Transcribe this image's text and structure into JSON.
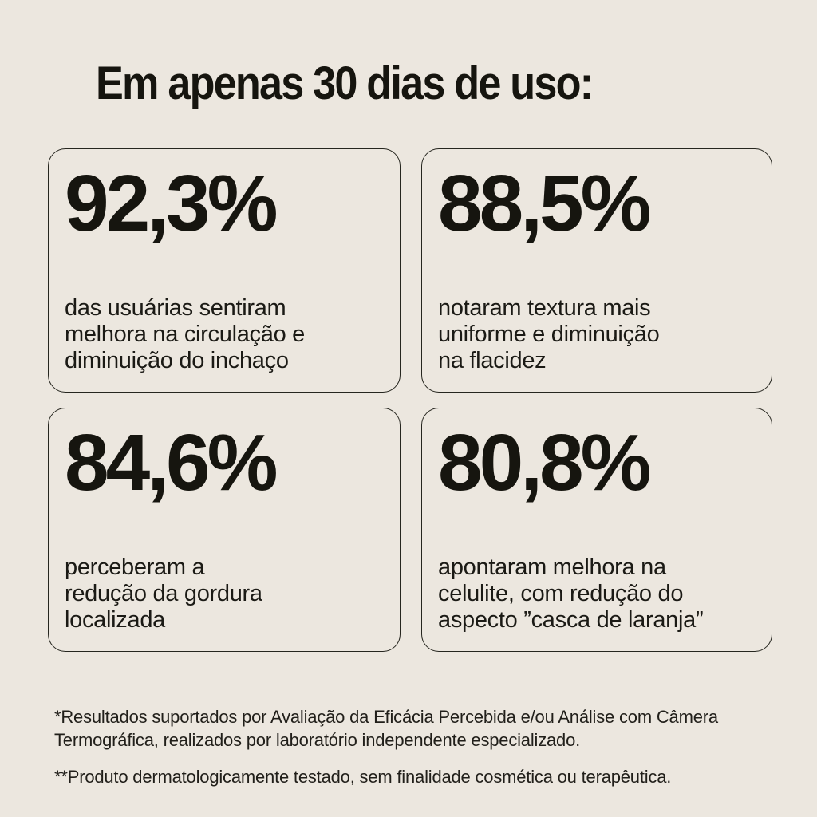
{
  "colors": {
    "background": "#ECE7DF",
    "text": "#16150F",
    "card_border": "#26261F"
  },
  "title": "Em apenas 30 dias de uso:",
  "cards": [
    {
      "value": "92,3%",
      "description_lines": [
        "das usuárias sentiram",
        "melhora na circulação e",
        "diminuição do inchaço"
      ]
    },
    {
      "value": "88,5%",
      "description_lines": [
        "notaram textura mais",
        "uniforme e diminuição",
        "na flacidez"
      ]
    },
    {
      "value": "84,6%",
      "description_lines": [
        "perceberam a",
        "redução da gordura",
        "localizada"
      ]
    },
    {
      "value": "80,8%",
      "description_lines": [
        "apontaram melhora na",
        "celulite, com redução do",
        "aspecto ”casca de laranja”"
      ]
    }
  ],
  "footnotes": [
    {
      "lines": [
        "*Resultados suportados por Avaliação da Eficácia Percebida e/ou Análise com Câmera",
        "Termográfica, realizados por laboratório independente especializado."
      ]
    },
    {
      "lines": [
        "**Produto dermatologicamente testado, sem finalidade cosmética ou terapêutica."
      ]
    }
  ]
}
